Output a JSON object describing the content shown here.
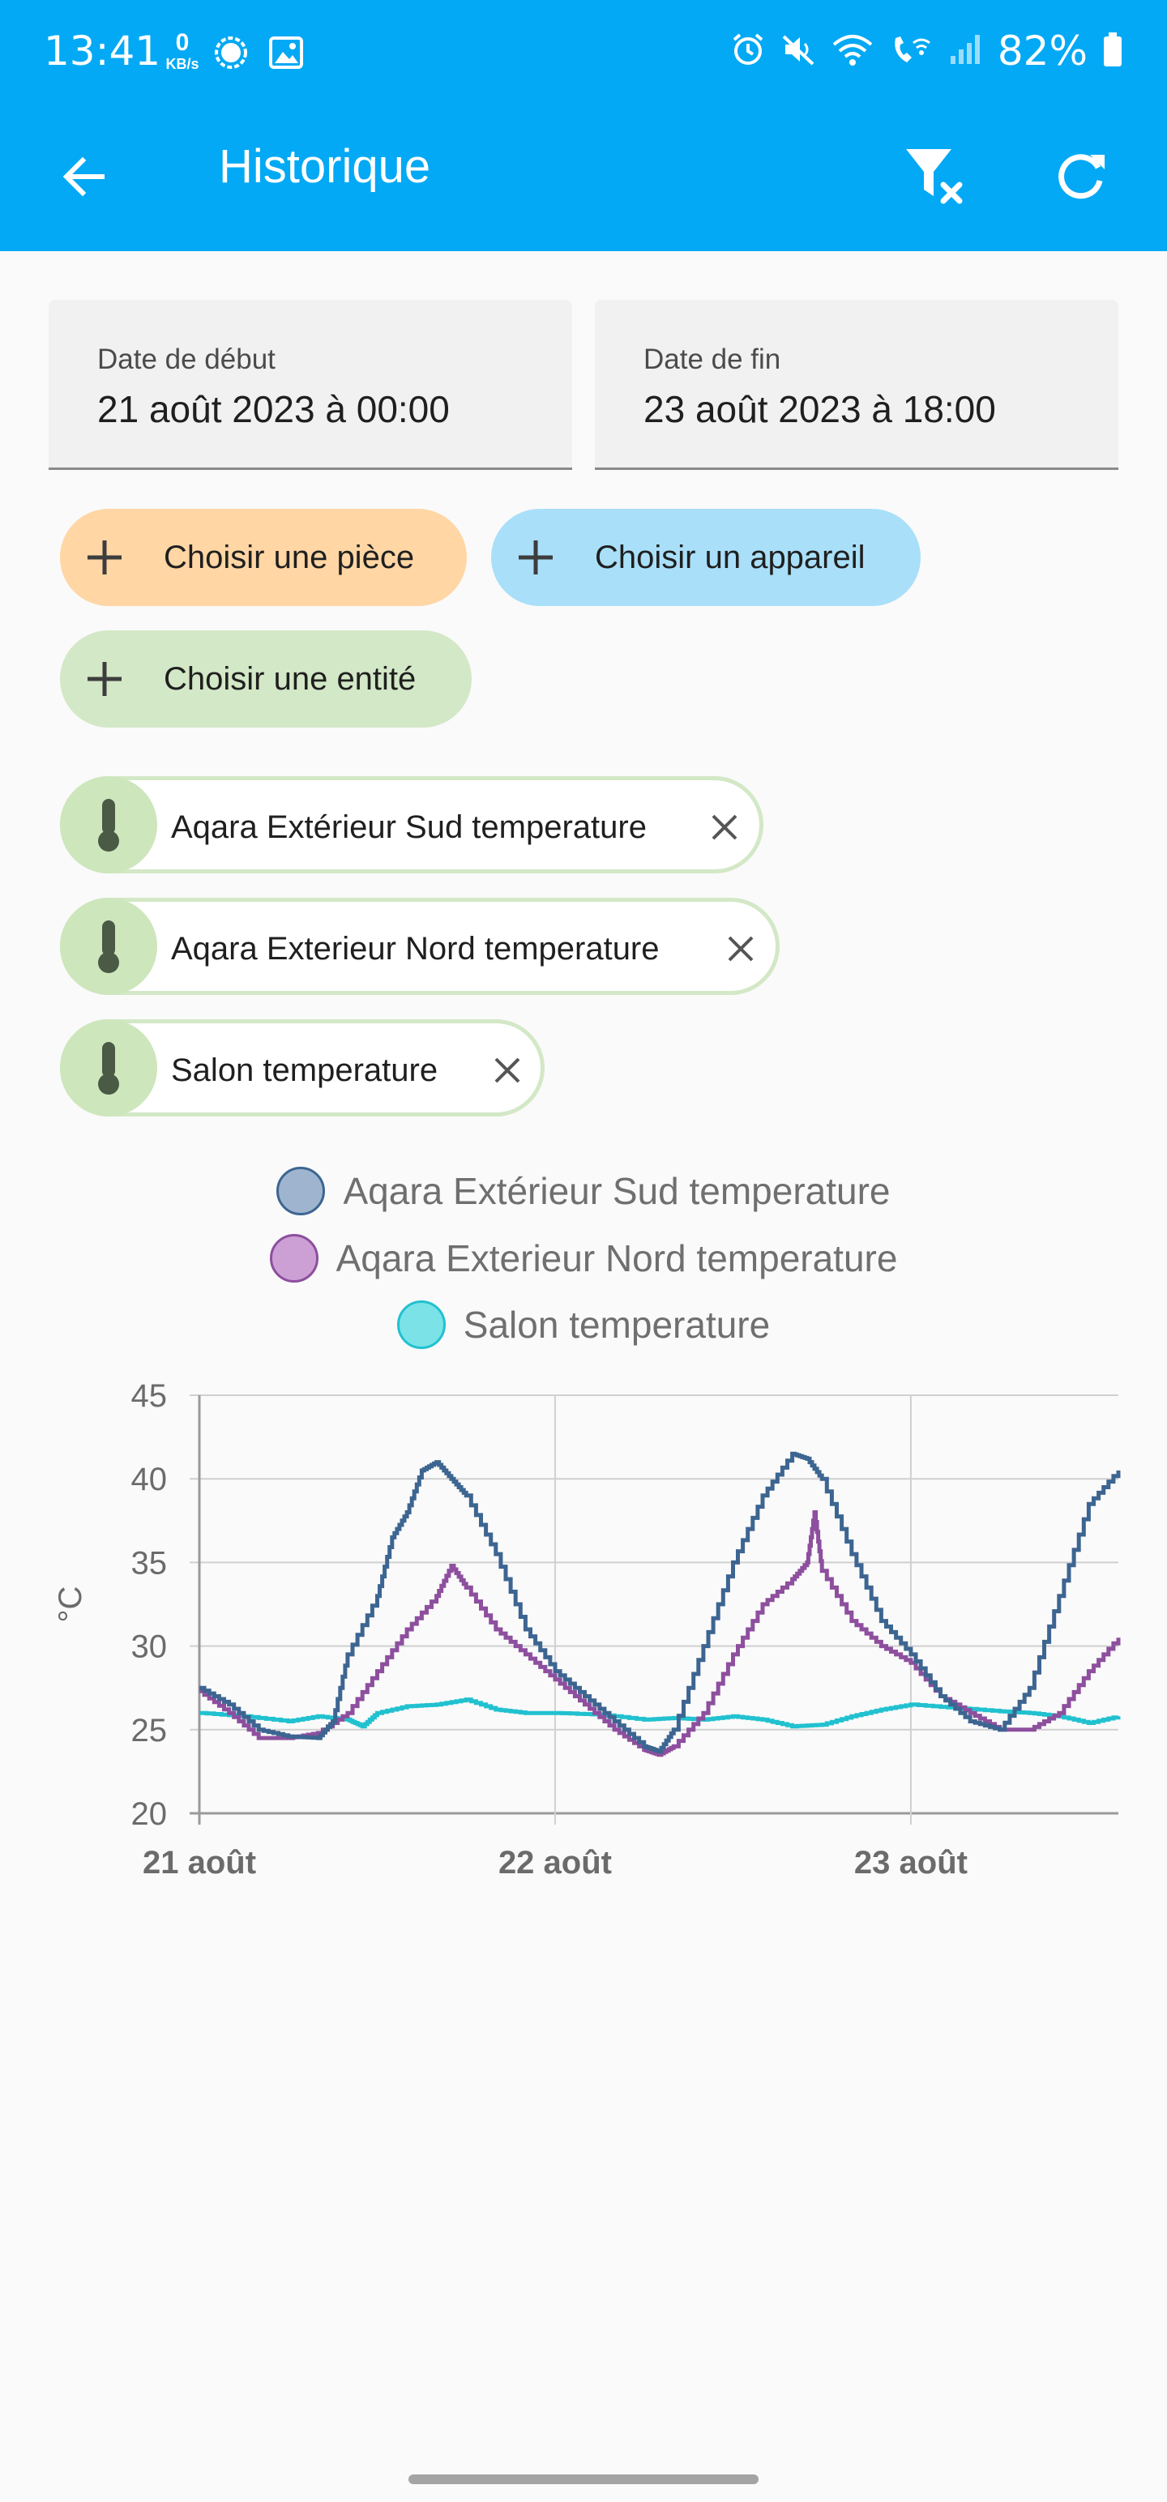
{
  "status_bar": {
    "time": "13:41",
    "kbs_value": "0",
    "kbs_unit": "KB/s",
    "battery": "82%",
    "icons_left": [
      "signal-messenger-icon",
      "gallery-icon"
    ],
    "icons_right": [
      "alarm-icon",
      "mute-icon",
      "wifi-icon",
      "wifi-calling-icon",
      "cellular-signal-icon",
      "battery-icon"
    ]
  },
  "app_bar": {
    "title": "Historique",
    "back_icon": "arrow-back-icon",
    "filter_clear_icon": "filter-clear-icon",
    "refresh_icon": "refresh-icon"
  },
  "date_range": {
    "start_label": "Date de début",
    "start_value": "21 août 2023 à 00:00",
    "end_label": "Date de fin",
    "end_value": "23 août 2023 à 18:00"
  },
  "pickers": [
    {
      "label": "Choisir une pièce",
      "color": "#ffd6a4"
    },
    {
      "label": "Choisir un appareil",
      "color": "#a9dff9"
    },
    {
      "label": "Choisir une entité",
      "color": "#d3e8c6"
    }
  ],
  "entities": [
    {
      "label": "Aqara Extérieur Sud temperature",
      "icon": "thermometer-icon"
    },
    {
      "label": "Aqara Exterieur Nord temperature",
      "icon": "thermometer-icon"
    },
    {
      "label": "Salon temperature",
      "icon": "thermometer-icon"
    }
  ],
  "chart_data": {
    "type": "line",
    "title": "",
    "xlabel": "",
    "ylabel": "°C",
    "ylim": [
      20,
      45
    ],
    "yticks": [
      20,
      25,
      30,
      35,
      40,
      45
    ],
    "xlim": [
      "2023-08-21T00:00",
      "2023-08-23T14:00"
    ],
    "xticks": [
      {
        "x": "2023-08-21T00:00",
        "label": "21 août"
      },
      {
        "x": "2023-08-22T00:00",
        "label": "22 août"
      },
      {
        "x": "2023-08-23T00:00",
        "label": "23 août"
      }
    ],
    "grid": true,
    "legend_position": "top-center",
    "series": [
      {
        "name": "Aqara Extérieur Sud temperature",
        "color": "#3d6591",
        "legend_fill": "#9fb5cf",
        "x": [
          "2023-08-21T00:00",
          "2023-08-21T02:00",
          "2023-08-21T04:00",
          "2023-08-21T06:00",
          "2023-08-21T08:00",
          "2023-08-21T09:00",
          "2023-08-21T10:00",
          "2023-08-21T12:00",
          "2023-08-21T13:00",
          "2023-08-21T14:00",
          "2023-08-21T15:00",
          "2023-08-21T16:00",
          "2023-08-21T17:00",
          "2023-08-21T18:00",
          "2023-08-21T20:00",
          "2023-08-21T22:00",
          "2023-08-22T00:00",
          "2023-08-22T02:00",
          "2023-08-22T04:00",
          "2023-08-22T06:00",
          "2023-08-22T07:00",
          "2023-08-22T08:00",
          "2023-08-22T10:00",
          "2023-08-22T12:00",
          "2023-08-22T14:00",
          "2023-08-22T16:00",
          "2023-08-22T17:00",
          "2023-08-22T18:00",
          "2023-08-22T20:00",
          "2023-08-22T22:00",
          "2023-08-23T00:00",
          "2023-08-23T02:00",
          "2023-08-23T04:00",
          "2023-08-23T06:00",
          "2023-08-23T08:00",
          "2023-08-23T10:00",
          "2023-08-23T12:00",
          "2023-08-23T14:00"
        ],
        "values": [
          27.5,
          26.5,
          25.0,
          24.6,
          24.5,
          25.5,
          29.5,
          33.0,
          36.5,
          38.0,
          40.5,
          41.0,
          40.0,
          39.0,
          35.5,
          31.0,
          28.5,
          27.0,
          25.5,
          24.0,
          23.7,
          25.0,
          30.0,
          35.0,
          39.0,
          41.5,
          41.2,
          40.0,
          35.5,
          31.5,
          29.5,
          27.0,
          25.5,
          25.0,
          27.5,
          33.0,
          38.5,
          40.5
        ]
      },
      {
        "name": "Aqara Exterieur Nord temperature",
        "color": "#8d4f9e",
        "legend_fill": "#cda0d5",
        "x": [
          "2023-08-21T00:00",
          "2023-08-21T02:00",
          "2023-08-21T04:00",
          "2023-08-21T06:00",
          "2023-08-21T08:00",
          "2023-08-21T10:00",
          "2023-08-21T12:00",
          "2023-08-21T14:00",
          "2023-08-21T16:00",
          "2023-08-21T17:00",
          "2023-08-21T18:00",
          "2023-08-21T20:00",
          "2023-08-21T22:00",
          "2023-08-22T00:00",
          "2023-08-22T02:00",
          "2023-08-22T04:00",
          "2023-08-22T06:00",
          "2023-08-22T07:00",
          "2023-08-22T08:00",
          "2023-08-22T10:00",
          "2023-08-22T12:00",
          "2023-08-22T14:00",
          "2023-08-22T16:00",
          "2023-08-22T17:00",
          "2023-08-22T17:30",
          "2023-08-22T18:00",
          "2023-08-22T20:00",
          "2023-08-22T22:00",
          "2023-08-23T00:00",
          "2023-08-23T02:00",
          "2023-08-23T04:00",
          "2023-08-23T06:00",
          "2023-08-23T08:00",
          "2023-08-23T10:00",
          "2023-08-23T12:00",
          "2023-08-23T14:00"
        ],
        "values": [
          27.3,
          26.0,
          24.5,
          24.5,
          24.8,
          26.0,
          28.5,
          31.0,
          33.0,
          34.8,
          33.5,
          31.0,
          29.5,
          28.0,
          26.5,
          25.0,
          23.8,
          23.5,
          24.0,
          26.0,
          29.5,
          32.5,
          34.0,
          35.0,
          38.0,
          34.5,
          31.5,
          30.0,
          29.0,
          27.0,
          26.0,
          25.0,
          25.0,
          26.0,
          28.5,
          30.5
        ]
      },
      {
        "name": "Salon temperature",
        "color": "#21c1cf",
        "legend_fill": "#7be3e8",
        "x": [
          "2023-08-21T00:00",
          "2023-08-21T03:00",
          "2023-08-21T06:00",
          "2023-08-21T08:00",
          "2023-08-21T10:00",
          "2023-08-21T11:00",
          "2023-08-21T12:00",
          "2023-08-21T14:00",
          "2023-08-21T16:00",
          "2023-08-21T18:00",
          "2023-08-21T20:00",
          "2023-08-21T22:00",
          "2023-08-22T00:00",
          "2023-08-22T03:00",
          "2023-08-22T06:00",
          "2023-08-22T08:00",
          "2023-08-22T10:00",
          "2023-08-22T12:00",
          "2023-08-22T14:00",
          "2023-08-22T16:00",
          "2023-08-22T18:00",
          "2023-08-22T20:00",
          "2023-08-22T22:00",
          "2023-08-23T00:00",
          "2023-08-23T03:00",
          "2023-08-23T06:00",
          "2023-08-23T08:00",
          "2023-08-23T10:00",
          "2023-08-23T12:00",
          "2023-08-23T14:00"
        ],
        "values": [
          26.0,
          25.8,
          25.5,
          25.8,
          25.6,
          25.2,
          26.0,
          26.4,
          26.5,
          26.8,
          26.2,
          26.0,
          26.0,
          25.9,
          25.6,
          25.7,
          25.6,
          25.8,
          25.6,
          25.2,
          25.3,
          25.8,
          26.2,
          26.5,
          26.3,
          26.1,
          26.0,
          25.8,
          25.4,
          25.8
        ]
      }
    ]
  }
}
